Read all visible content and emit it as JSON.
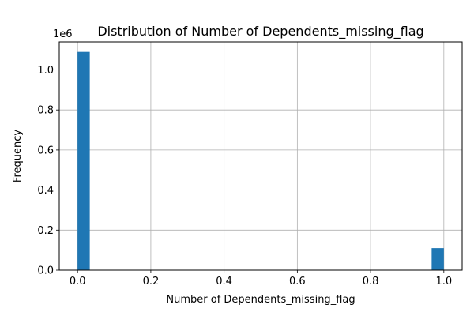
{
  "chart_data": {
    "type": "bar",
    "title": "Distribution of Number of Dependents_missing_flag",
    "xlabel": "Number of Dependents_missing_flag",
    "ylabel": "Frequency",
    "y_offset_label": "1e6",
    "xlim": [
      -0.05,
      1.05
    ],
    "ylim": [
      0,
      1.14
    ],
    "bin_width": 0.0333,
    "bars": [
      {
        "x_start": 0.0,
        "x_end": 0.0333,
        "value": 1.09
      },
      {
        "x_start": 0.9667,
        "x_end": 1.0,
        "value": 0.11
      }
    ],
    "x_ticks": [
      "0.0",
      "0.2",
      "0.4",
      "0.6",
      "0.8",
      "1.0"
    ],
    "y_ticks": [
      "0.0",
      "0.2",
      "0.4",
      "0.6",
      "0.8",
      "1.0"
    ],
    "grid": true,
    "bar_color": "#1f77b4",
    "grid_color": "#b0b0b0"
  }
}
